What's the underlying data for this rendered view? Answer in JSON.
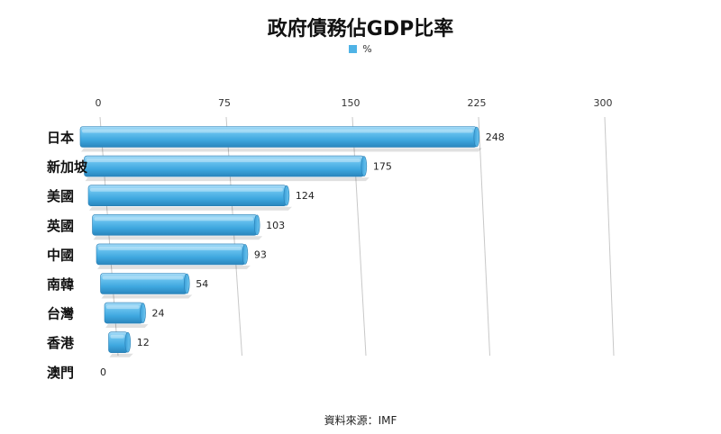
{
  "chart_data": {
    "type": "bar",
    "orientation": "horizontal",
    "title": "政府債務佔GDP比率",
    "categories": [
      "日本",
      "新加坡",
      "美國",
      "英國",
      "中國",
      "南韓",
      "台灣",
      "香港",
      "澳門"
    ],
    "series": [
      {
        "name": "%",
        "color": "#4fb3e6",
        "values": [
          248,
          175,
          124,
          103,
          93,
          54,
          24,
          12,
          0
        ]
      }
    ],
    "xticks": [
      0,
      75,
      150,
      225,
      300
    ],
    "xlim": [
      0,
      300
    ],
    "axis_position": "top",
    "grid": true,
    "legend_position": "top-center",
    "data_labels": true,
    "style": "3d-cylinder"
  },
  "footer": {
    "source": "資料來源：IMF"
  }
}
